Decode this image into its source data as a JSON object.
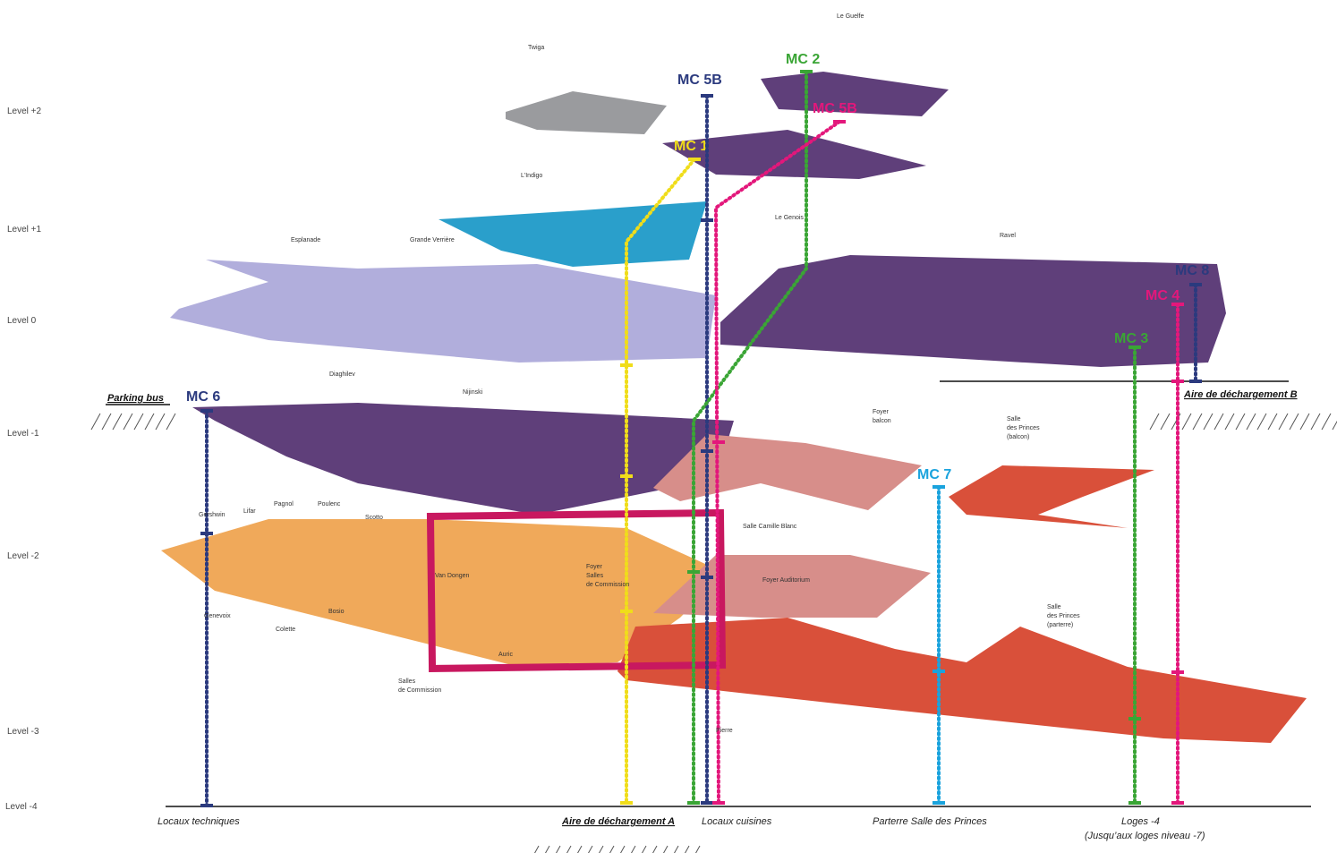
{
  "levels": [
    "Level +2",
    "Level +1",
    "Level 0",
    "Level -1",
    "Level -2",
    "Level -3",
    "Level -4"
  ],
  "rooms": [
    "Twiga",
    "Le Guelfe",
    "L'Indigo",
    "Le Genois",
    "Esplanade",
    "Grande Verrière",
    "Ravel",
    "Diaghilev",
    "Nijinski",
    "Foyer balcon",
    "Salle des Princes (balcon)",
    "Salle Camille Blanc",
    "Foyer Auditorium",
    "Salle des Princes (parterre)",
    "Gershwin",
    "Lifar",
    "Pagnol",
    "Poulenc",
    "Scotto",
    "Van Dongen",
    "Foyer Salles de Commission",
    "Genevoix",
    "Colette",
    "Bosio",
    "Auric",
    "Salles de Commission",
    "Pierre"
  ],
  "lifts": [
    "MC 6",
    "MC 1",
    "MC 5B",
    "MC 2",
    "MC 5B",
    "MC 8",
    "MC 4",
    "MC 3",
    "MC 7"
  ],
  "areas": {
    "parking": "Parking bus",
    "unloading_b": "Aire de déchargement B",
    "unloading_a": "Aire de déchargement A"
  },
  "bottom_labels": [
    "Locaux techniques",
    "Locaux cuisines",
    "Parterre Salle des Princes",
    "Loges -4",
    "(Jusqu’aux loges niveau -7)"
  ]
}
